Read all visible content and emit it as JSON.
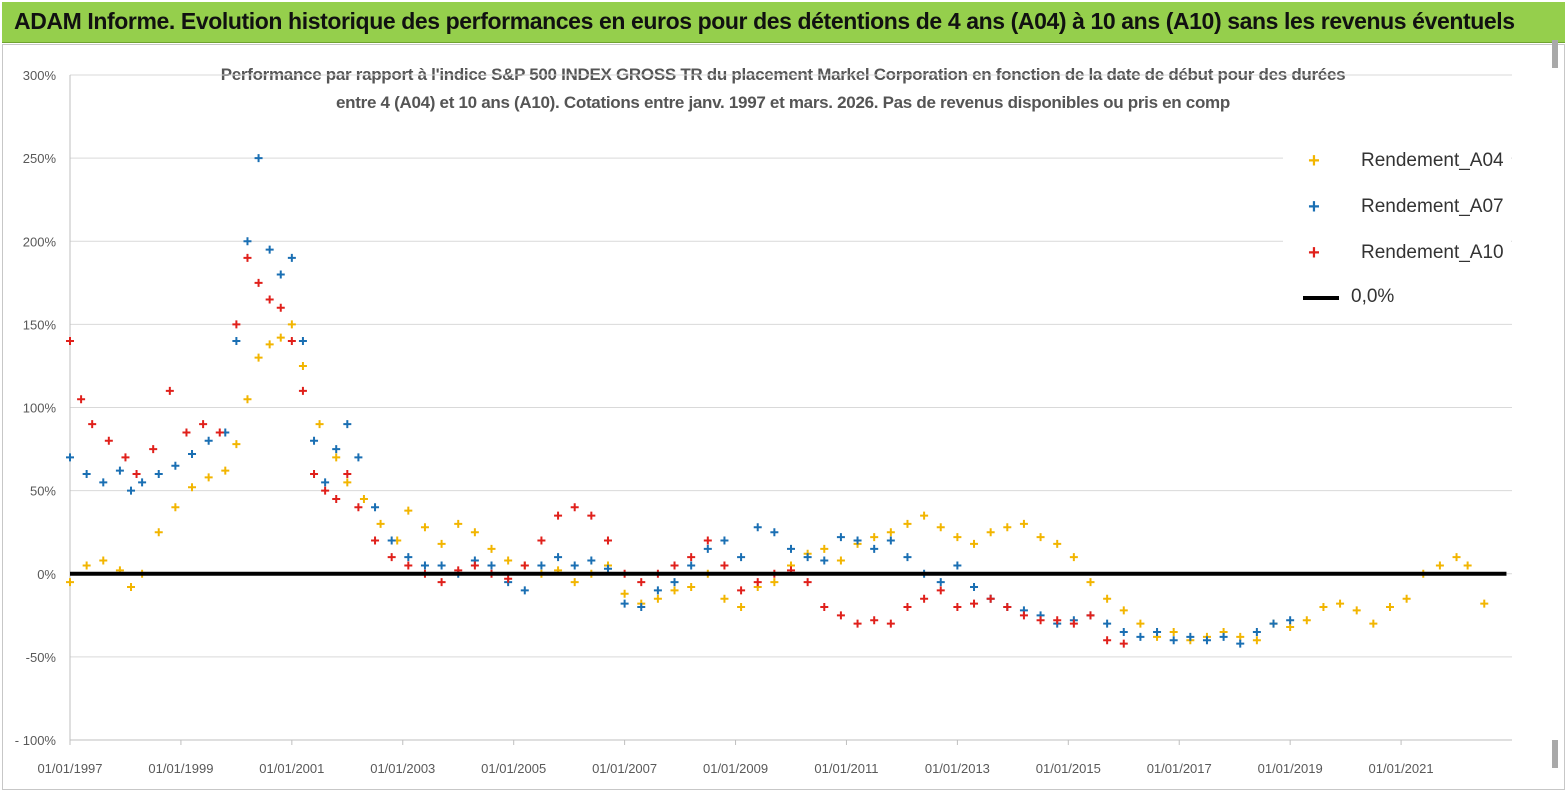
{
  "banner": {
    "title": "ADAM Informe. Evolution historique des performances en euros pour des détentions de 4 ans (A04) à 10 ans (A10) sans les revenus éventuels"
  },
  "chart_data": {
    "type": "scatter",
    "title_line1": "Performance par rapport à l'indice S&P 500 INDEX GROSS TR  du placement Markel Corporation en fonction de la date de début pour des durées",
    "title_line2": "entre 4 (A04) et 10 ans (A10). Cotations entre janv. 1997 et mars. 2026. Pas de revenus disponibles ou pris en comp",
    "xlabel": "",
    "ylabel": "",
    "xlim": [
      1997.0,
      2023.0
    ],
    "ylim": [
      -100,
      300
    ],
    "yticks": [
      -100,
      -50,
      0,
      50,
      100,
      150,
      200,
      250,
      300
    ],
    "ytick_labels": [
      "- 100%",
      "-50%",
      "0%",
      "50%",
      "100%",
      "150%",
      "200%",
      "250%",
      "300%"
    ],
    "xticks": [
      1997,
      1999,
      2001,
      2003,
      2005,
      2007,
      2009,
      2011,
      2013,
      2015,
      2017,
      2019,
      2021
    ],
    "xtick_labels": [
      "01/01/1997",
      "01/01/1999",
      "01/01/2001",
      "01/01/2003",
      "01/01/2005",
      "01/01/2007",
      "01/01/2009",
      "01/01/2011",
      "01/01/2013",
      "01/01/2015",
      "01/01/2017",
      "01/01/2019",
      "01/01/2021"
    ],
    "grid": true,
    "legend_position": "top-right",
    "series": [
      {
        "name": "Rendement_A04",
        "color": "#f2b500",
        "marker": "plus",
        "x": [
          1997.0,
          1997.3,
          1997.6,
          1997.9,
          1998.1,
          1998.3,
          1998.6,
          1998.9,
          1999.2,
          1999.5,
          1999.8,
          2000.0,
          2000.2,
          2000.4,
          2000.6,
          2000.8,
          2001.0,
          2001.2,
          2001.5,
          2001.8,
          2002.0,
          2002.3,
          2002.6,
          2002.9,
          2003.1,
          2003.4,
          2003.7,
          2004.0,
          2004.3,
          2004.6,
          2004.9,
          2005.2,
          2005.5,
          2005.8,
          2006.1,
          2006.4,
          2006.7,
          2007.0,
          2007.3,
          2007.6,
          2007.9,
          2008.2,
          2008.5,
          2008.8,
          2009.1,
          2009.4,
          2009.7,
          2010.0,
          2010.3,
          2010.6,
          2010.9,
          2011.2,
          2011.5,
          2011.8,
          2012.1,
          2012.4,
          2012.7,
          2013.0,
          2013.3,
          2013.6,
          2013.9,
          2014.2,
          2014.5,
          2014.8,
          2015.1,
          2015.4,
          2015.7,
          2016.0,
          2016.3,
          2016.6,
          2016.9,
          2017.2,
          2017.5,
          2017.8,
          2018.1,
          2018.4,
          2018.7,
          2019.0,
          2019.3,
          2019.6,
          2019.9,
          2020.2,
          2020.5,
          2020.8,
          2021.1,
          2021.4,
          2021.7,
          2022.0,
          2022.2,
          2022.5
        ],
        "values": [
          -5,
          5,
          8,
          2,
          -8,
          0,
          25,
          40,
          52,
          58,
          62,
          78,
          105,
          130,
          138,
          142,
          150,
          125,
          90,
          70,
          55,
          45,
          30,
          20,
          38,
          28,
          18,
          30,
          25,
          15,
          8,
          5,
          0,
          2,
          -5,
          0,
          5,
          -12,
          -18,
          -15,
          -10,
          -8,
          0,
          -15,
          -20,
          -8,
          -5,
          5,
          12,
          15,
          8,
          18,
          22,
          25,
          30,
          35,
          28,
          22,
          18,
          25,
          28,
          30,
          22,
          18,
          10,
          -5,
          -15,
          -22,
          -30,
          -38,
          -35,
          -40,
          -38,
          -35,
          -38,
          -40,
          -30,
          -32,
          -28,
          -20,
          -18,
          -22,
          -30,
          -20,
          -15,
          0,
          5,
          10,
          5,
          -18
        ]
      },
      {
        "name": "Rendement_A07",
        "color": "#1a6fb3",
        "marker": "plus",
        "x": [
          1997.0,
          1997.3,
          1997.6,
          1997.9,
          1998.1,
          1998.3,
          1998.6,
          1998.9,
          1999.2,
          1999.5,
          1999.8,
          2000.0,
          2000.2,
          2000.4,
          2000.6,
          2000.8,
          2001.0,
          2001.2,
          2001.4,
          2001.6,
          2001.8,
          2002.0,
          2002.2,
          2002.5,
          2002.8,
          2003.1,
          2003.4,
          2003.7,
          2004.0,
          2004.3,
          2004.6,
          2004.9,
          2005.2,
          2005.5,
          2005.8,
          2006.1,
          2006.4,
          2006.7,
          2007.0,
          2007.3,
          2007.6,
          2007.9,
          2008.2,
          2008.5,
          2008.8,
          2009.1,
          2009.4,
          2009.7,
          2010.0,
          2010.3,
          2010.6,
          2010.9,
          2011.2,
          2011.5,
          2011.8,
          2012.1,
          2012.4,
          2012.7,
          2013.0,
          2013.3,
          2013.6,
          2013.9,
          2014.2,
          2014.5,
          2014.8,
          2015.1,
          2015.4,
          2015.7,
          2016.0,
          2016.3,
          2016.6,
          2016.9,
          2017.2,
          2017.5,
          2017.8,
          2018.1,
          2018.4,
          2018.7,
          2019.0
        ],
        "values": [
          70,
          60,
          55,
          62,
          50,
          55,
          60,
          65,
          72,
          80,
          85,
          140,
          200,
          250,
          195,
          180,
          190,
          140,
          80,
          55,
          75,
          90,
          70,
          40,
          20,
          10,
          5,
          5,
          0,
          8,
          5,
          -5,
          -10,
          5,
          10,
          5,
          8,
          3,
          -18,
          -20,
          -10,
          -5,
          5,
          15,
          20,
          10,
          28,
          25,
          15,
          10,
          8,
          22,
          20,
          15,
          20,
          10,
          0,
          -5,
          5,
          -8,
          -15,
          -20,
          -22,
          -25,
          -30,
          -28,
          -25,
          -30,
          -35,
          -38,
          -35,
          -40,
          -38,
          -40,
          -38,
          -42,
          -35,
          -30,
          -28
        ]
      },
      {
        "name": "Rendement_A10",
        "color": "#e0201b",
        "marker": "plus",
        "x": [
          1997.0,
          1997.2,
          1997.4,
          1997.7,
          1998.0,
          1998.2,
          1998.5,
          1998.8,
          1999.1,
          1999.4,
          1999.7,
          2000.0,
          2000.2,
          2000.4,
          2000.6,
          2000.8,
          2001.0,
          2001.2,
          2001.4,
          2001.6,
          2001.8,
          2002.0,
          2002.2,
          2002.5,
          2002.8,
          2003.1,
          2003.4,
          2003.7,
          2004.0,
          2004.3,
          2004.6,
          2004.9,
          2005.2,
          2005.5,
          2005.8,
          2006.1,
          2006.4,
          2006.7,
          2007.0,
          2007.3,
          2007.6,
          2007.9,
          2008.2,
          2008.5,
          2008.8,
          2009.1,
          2009.4,
          2009.7,
          2010.0,
          2010.3,
          2010.6,
          2010.9,
          2011.2,
          2011.5,
          2011.8,
          2012.1,
          2012.4,
          2012.7,
          2013.0,
          2013.3,
          2013.6,
          2013.9,
          2014.2,
          2014.5,
          2014.8,
          2015.1,
          2015.4,
          2015.7,
          2016.0
        ],
        "values": [
          140,
          105,
          90,
          80,
          70,
          60,
          75,
          110,
          85,
          90,
          85,
          150,
          190,
          175,
          165,
          160,
          140,
          110,
          60,
          50,
          45,
          60,
          40,
          20,
          10,
          5,
          0,
          -5,
          2,
          5,
          0,
          -3,
          5,
          20,
          35,
          40,
          35,
          20,
          0,
          -5,
          0,
          5,
          10,
          20,
          5,
          -10,
          -5,
          0,
          2,
          -5,
          -20,
          -25,
          -30,
          -28,
          -30,
          -20,
          -15,
          -10,
          -20,
          -18,
          -15,
          -20,
          -25,
          -28,
          -28,
          -30,
          -25,
          -40,
          -42
        ]
      },
      {
        "name": "0,0%",
        "color": "#000000",
        "marker": "line",
        "x": [
          1997.0,
          2022.9
        ],
        "values": [
          0,
          0
        ]
      }
    ]
  }
}
